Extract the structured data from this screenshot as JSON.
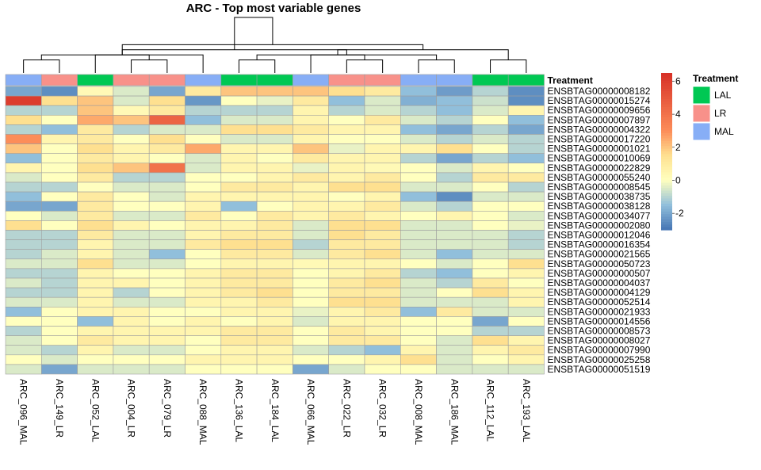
{
  "chart_data": {
    "type": "heatmap",
    "title": "ARC - Top most variable genes",
    "annotation_label": "Treatment",
    "columns": [
      "ARC_096_MAL",
      "ARC_149_LR",
      "ARC_052_LAL",
      "ARC_004_LR",
      "ARC_079_LR",
      "ARC_088_MAL",
      "ARC_136_LAL",
      "ARC_184_LAL",
      "ARC_066_MAL",
      "ARC_022_LR",
      "ARC_032_LR",
      "ARC_008_MAL",
      "ARC_186_MAL",
      "ARC_112_LAL",
      "ARC_193_LAL"
    ],
    "column_treatment": [
      "MAL",
      "LR",
      "LAL",
      "LR",
      "LR",
      "MAL",
      "LAL",
      "LAL",
      "MAL",
      "LR",
      "LR",
      "MAL",
      "MAL",
      "LAL",
      "LAL"
    ],
    "rows": [
      "ENSBTAG00000008182",
      "ENSBTAG00000015274",
      "ENSBTAG00000009656",
      "ENSBTAG00000007897",
      "ENSBTAG00000004322",
      "ENSBTAG00000017220",
      "ENSBTAG00000001021",
      "ENSBTAG00000010069",
      "ENSBTAG00000022829",
      "ENSBTAG00000055240",
      "ENSBTAG00000008545",
      "ENSBTAG00000038735",
      "ENSBTAG00000038128",
      "ENSBTAG00000034077",
      "ENSBTAG00000002080",
      "ENSBTAG00000012046",
      "ENSBTAG00000016354",
      "ENSBTAG00000021565",
      "ENSBTAG00000050723",
      "ENSBTAG00000000507",
      "ENSBTAG00000004037",
      "ENSBTAG00000004129",
      "ENSBTAG00000052514",
      "ENSBTAG00000021933",
      "ENSBTAG00000014556",
      "ENSBTAG00000008573",
      "ENSBTAG00000008027",
      "ENSBTAG00000007990",
      "ENSBTAG00000025258",
      "ENSBTAG00000051519"
    ],
    "values": [
      [
        -2,
        -2.5,
        0.3,
        -0.5,
        -2,
        1,
        2,
        2,
        2,
        1.5,
        1,
        -1.5,
        -2.2,
        -1,
        -2.5
      ],
      [
        6,
        1.5,
        2,
        -0.5,
        1.5,
        -2.3,
        0,
        -0.3,
        1,
        -1.5,
        -0.5,
        -1.8,
        -1.5,
        -0.7,
        -2.5
      ],
      [
        -1,
        -1,
        2,
        0.3,
        1,
        -1,
        -1,
        -1,
        0.5,
        -1,
        -0.5,
        -1,
        -1.5,
        -0.5,
        0.5
      ],
      [
        1.5,
        0,
        2.5,
        2,
        4.5,
        -1.5,
        -0.5,
        -0.5,
        0.5,
        0,
        1,
        -0.5,
        -1,
        0,
        -1.5
      ],
      [
        -1,
        -1.5,
        1,
        -1,
        -0.5,
        -0.5,
        1.5,
        1.5,
        1,
        0.5,
        0.5,
        -1.5,
        -2,
        -1,
        -2
      ],
      [
        3,
        0.5,
        1,
        0,
        1.5,
        0,
        -0.5,
        -0.5,
        0.5,
        0,
        0,
        -0.5,
        -1,
        -0.5,
        -1
      ],
      [
        2,
        0,
        1.5,
        0.5,
        1,
        2.5,
        0.5,
        0.5,
        2,
        -0.3,
        0.5,
        0.5,
        1.5,
        0,
        -1
      ],
      [
        -1.5,
        0,
        1,
        0.5,
        0,
        -0.5,
        0.5,
        0,
        1,
        0.5,
        0.5,
        -1,
        -2,
        -1,
        -1.5
      ],
      [
        0.5,
        0,
        1.5,
        2,
        4,
        -0.5,
        0.5,
        0.5,
        -0.3,
        0.5,
        0.3,
        0,
        -0.5,
        0.5,
        0
      ],
      [
        -0.5,
        0,
        1,
        -1,
        -1,
        0,
        0,
        0.5,
        1,
        0.5,
        1,
        0,
        -1,
        1,
        1
      ],
      [
        -1,
        -1,
        0,
        -0.5,
        -0.5,
        0,
        1,
        1,
        0.5,
        1.5,
        1.5,
        -0.5,
        -0.5,
        0,
        -1
      ],
      [
        -1.5,
        0,
        1,
        0,
        -0.5,
        0.5,
        0.5,
        0.5,
        0.5,
        0,
        0.5,
        -1.5,
        -2.5,
        -0.5,
        -0.5
      ],
      [
        -2,
        -2,
        1,
        0,
        0,
        0.5,
        -1.5,
        0,
        0.5,
        0.5,
        1,
        -0.5,
        -1,
        0,
        0
      ],
      [
        0,
        -0.5,
        1,
        -0.5,
        -0.5,
        1,
        0,
        1,
        0.5,
        1,
        0.5,
        0,
        0.5,
        0,
        -0.5
      ],
      [
        1.5,
        0,
        1.5,
        0.5,
        0,
        0.5,
        0.5,
        1,
        -0.5,
        1.5,
        1.5,
        -0.5,
        -0.5,
        0,
        -0.3
      ],
      [
        -1,
        -1,
        1,
        -0.5,
        -0.5,
        0.5,
        1,
        1,
        -0.5,
        1.5,
        1,
        -0.5,
        -0.5,
        -0.5,
        -1
      ],
      [
        -1,
        -1,
        0.5,
        -0.5,
        -0.5,
        1,
        1.5,
        1.5,
        -1,
        1,
        1,
        -0.5,
        -0.5,
        -0.5,
        -1
      ],
      [
        -1,
        -0.5,
        0.5,
        -0.5,
        -1.5,
        0,
        1,
        1,
        -0.5,
        1,
        1.5,
        -0.5,
        -1.5,
        -0.5,
        -0.5
      ],
      [
        -0.5,
        -0.5,
        1.5,
        -0.5,
        -0.5,
        0,
        0.5,
        0.5,
        0.3,
        0.5,
        0.5,
        0,
        -0.5,
        0,
        1.5
      ],
      [
        -1,
        -1,
        0.5,
        0,
        0,
        0.5,
        1,
        1,
        0,
        0.5,
        1,
        -1,
        -1.5,
        0,
        0.5
      ],
      [
        -0.5,
        -1,
        0.5,
        0.5,
        0,
        0.5,
        1,
        1,
        0,
        1,
        1.5,
        -0.5,
        -1,
        1,
        0
      ],
      [
        -1,
        -1,
        0.5,
        -1,
        0,
        0.5,
        1,
        1.5,
        0,
        1,
        1,
        -0.5,
        0,
        1.5,
        0.5
      ],
      [
        -0.5,
        -0.5,
        0.5,
        -0.5,
        -0.5,
        0.5,
        0.5,
        1,
        0,
        1.5,
        1.5,
        -0.5,
        -0.5,
        -0.5,
        0.5
      ],
      [
        -1.5,
        0,
        0.5,
        0.5,
        0,
        0,
        0.5,
        0.5,
        -0.3,
        0.5,
        1,
        -1.5,
        1,
        -0.5,
        -0.5
      ],
      [
        0,
        0,
        -1.5,
        0.5,
        0,
        0.5,
        0,
        0.5,
        -0.5,
        0.5,
        0.5,
        0,
        0,
        -2,
        0
      ],
      [
        -1,
        0,
        0.5,
        0.5,
        0.5,
        0.5,
        1,
        1,
        0,
        1,
        0.5,
        0,
        0,
        -1,
        -1
      ],
      [
        -0.5,
        0,
        1,
        0.5,
        0.5,
        0,
        1,
        1,
        0,
        1,
        1,
        0,
        -0.5,
        1.5,
        0.5
      ],
      [
        -0.5,
        -1,
        0.5,
        -0.5,
        -0.5,
        0,
        0.5,
        0.5,
        -0.5,
        -1,
        -1.5,
        0.5,
        -0.5,
        0.5,
        1
      ],
      [
        0,
        -0.5,
        0,
        0,
        0,
        0.5,
        0.5,
        0.5,
        0,
        0,
        0.5,
        1.5,
        -0.5,
        0,
        0.5
      ],
      [
        -0.5,
        -2,
        -0.5,
        -0.5,
        -0.5,
        0,
        0,
        0,
        -2,
        -0.5,
        0,
        0,
        -0.5,
        -0.5,
        -0.5
      ]
    ],
    "color_scale": {
      "min": -3,
      "max": 6.5,
      "stops": [
        [
          -3,
          "#4575b4"
        ],
        [
          -1.5,
          "#91bfdb"
        ],
        [
          0,
          "#ffffbf"
        ],
        [
          1.5,
          "#fee090"
        ],
        [
          3,
          "#fc8d59"
        ],
        [
          6.5,
          "#d73027"
        ]
      ],
      "ticks": [
        6,
        4,
        2,
        0,
        -2
      ]
    },
    "legend": {
      "title": "Treatment",
      "items": [
        {
          "label": "LAL",
          "color": "#00c853"
        },
        {
          "label": "LR",
          "color": "#f8918a"
        },
        {
          "label": "MAL",
          "color": "#87aef6"
        }
      ]
    },
    "treatment_colors": {
      "LAL": "#00c853",
      "LR": "#f8918a",
      "MAL": "#87aef6"
    },
    "dendrogram_merges": [
      [
        0,
        1
      ],
      [
        6,
        7
      ],
      [
        9,
        10
      ],
      [
        11,
        12
      ],
      [
        13,
        14
      ],
      [
        3,
        4
      ],
      [
        17,
        8
      ],
      [
        15,
        5
      ],
      [
        16,
        18
      ],
      [
        2,
        20
      ],
      [
        19,
        21
      ],
      [
        22,
        23
      ],
      [
        24,
        25
      ],
      [
        26,
        27
      ]
    ]
  }
}
